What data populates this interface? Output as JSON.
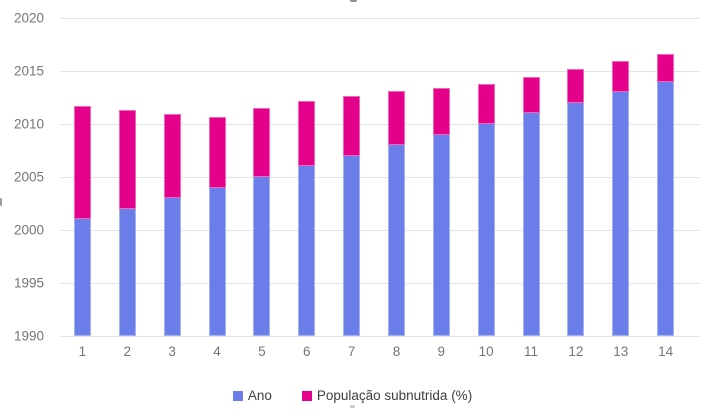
{
  "chart_data": {
    "type": "bar",
    "stacked": true,
    "categories": [
      "1",
      "2",
      "3",
      "4",
      "5",
      "6",
      "7",
      "8",
      "9",
      "10",
      "11",
      "12",
      "13",
      "14"
    ],
    "series": [
      {
        "name": "Ano",
        "color": "#6b7de8",
        "values": [
          2001,
          2002,
          2003,
          2004,
          2005,
          2006,
          2007,
          2008,
          2009,
          2010,
          2011,
          2012,
          2013,
          2014
        ]
      },
      {
        "name": "População subnutrida (%)",
        "color": "#e5008c",
        "values": [
          10.7,
          9.3,
          7.9,
          6.7,
          6.5,
          6.2,
          5.6,
          5.1,
          4.4,
          3.8,
          3.4,
          3.2,
          2.9,
          2.6
        ]
      }
    ],
    "yticks": [
      "2020",
      "2015",
      "2010",
      "2005",
      "2000",
      "1995",
      "1990"
    ],
    "ylim": [
      1990,
      2020
    ],
    "ytick_step": 5,
    "grid": true,
    "legend_position": "bottom"
  },
  "style": {
    "gridline_color": "#e2e2e2",
    "axis_label_color": "#757575",
    "legend_text_color": "#3f3f3f",
    "background": "#ffffff"
  }
}
